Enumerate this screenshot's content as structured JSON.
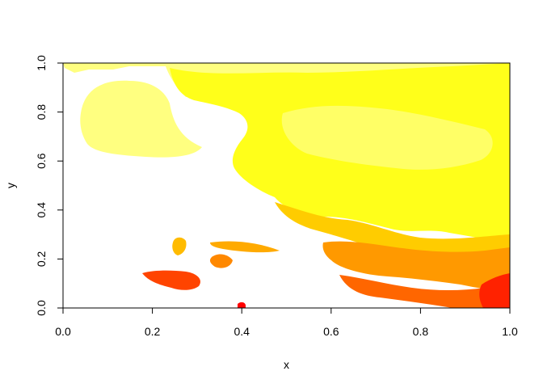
{
  "chart_data": {
    "type": "heatmap",
    "title": "",
    "xlabel": "x",
    "ylabel": "y",
    "xlim": [
      0,
      1
    ],
    "ylim": [
      0,
      1
    ],
    "x_ticks": [
      "0.0",
      "0.2",
      "0.4",
      "0.6",
      "0.8",
      "1.0"
    ],
    "y_ticks": [
      "0.0",
      "0.2",
      "0.4",
      "0.6",
      "0.8",
      "1.0"
    ],
    "palette": "heat.colors",
    "colors": [
      "#ff0000",
      "#ff3300",
      "#ff6600",
      "#ff9900",
      "#ffcc00",
      "#ffff00",
      "#ffff80"
    ],
    "grid": false,
    "legend": "none"
  }
}
